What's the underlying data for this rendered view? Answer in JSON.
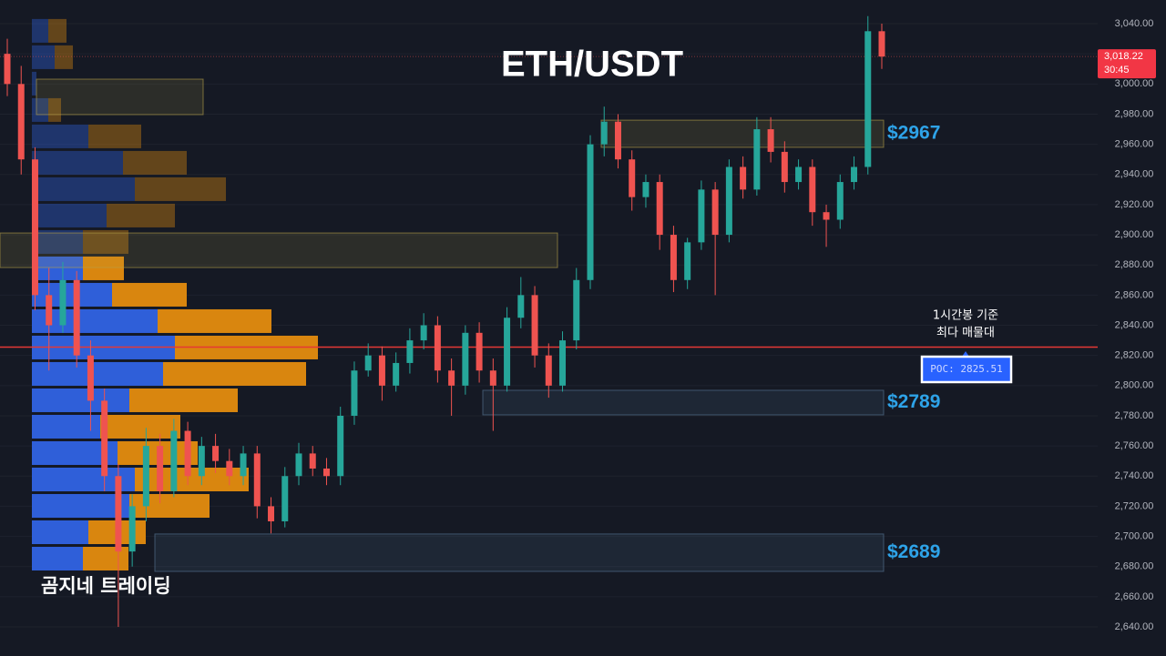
{
  "chart_data": {
    "type": "candlestick",
    "title": "ETH/USDT",
    "watermark": "곰지네 트레이딩",
    "ylim": [
      2620.7,
      3055.7
    ],
    "yticks": [
      {
        "value": 2640,
        "label": "2,640.00"
      },
      {
        "value": 2660,
        "label": "2,660.00"
      },
      {
        "value": 2680,
        "label": "2,680.00"
      },
      {
        "value": 2700,
        "label": "2,700.00"
      },
      {
        "value": 2720,
        "label": "2,720.00"
      },
      {
        "value": 2740,
        "label": "2,740.00"
      },
      {
        "value": 2760,
        "label": "2,760.00"
      },
      {
        "value": 2780,
        "label": "2,780.00"
      },
      {
        "value": 2800,
        "label": "2,800.00"
      },
      {
        "value": 2820,
        "label": "2,820.00"
      },
      {
        "value": 2840,
        "label": "2,840.00"
      },
      {
        "value": 2860,
        "label": "2,860.00"
      },
      {
        "value": 2880,
        "label": "2,880.00"
      },
      {
        "value": 2900,
        "label": "2,900.00"
      },
      {
        "value": 2920,
        "label": "2,920.00"
      },
      {
        "value": 2940,
        "label": "2,940.00"
      },
      {
        "value": 2960,
        "label": "2,960.00"
      },
      {
        "value": 2980,
        "label": "2,980.00"
      },
      {
        "value": 3000,
        "label": "3,000.00"
      },
      {
        "value": 3020,
        "label": "3,020.00"
      },
      {
        "value": 3040,
        "label": "3,040.00"
      }
    ],
    "grid": true,
    "up_color": "#26a69a",
    "down_color": "#ef5350",
    "open": [
      3020,
      3000,
      2950,
      2860,
      2840,
      2870,
      2820,
      2790,
      2740,
      2690,
      2720,
      2760,
      2730,
      2770,
      2740,
      2760,
      2750,
      2740,
      2755,
      2720,
      2710,
      2740,
      2755,
      2745,
      2740,
      2780,
      2810,
      2820,
      2800,
      2815,
      2830,
      2840,
      2810,
      2800,
      2835,
      2810,
      2800,
      2845,
      2860,
      2820,
      2800,
      2830,
      2870,
      2960,
      2975,
      2950,
      2925,
      2935,
      2900,
      2870,
      2895,
      2930,
      2900,
      2945,
      2930,
      2970,
      2955,
      2935,
      2945,
      2915,
      2910,
      2935,
      2945,
      3035
    ],
    "high": [
      3030,
      3012,
      2958,
      2878,
      2882,
      2876,
      2830,
      2798,
      2748,
      2728,
      2772,
      2768,
      2778,
      2776,
      2766,
      2768,
      2758,
      2760,
      2760,
      2726,
      2746,
      2762,
      2760,
      2752,
      2786,
      2816,
      2828,
      2826,
      2822,
      2838,
      2848,
      2846,
      2818,
      2840,
      2842,
      2818,
      2852,
      2872,
      2866,
      2828,
      2836,
      2878,
      2966,
      2985,
      2980,
      2956,
      2940,
      2940,
      2906,
      2898,
      2936,
      2935,
      2950,
      2952,
      2978,
      2978,
      2962,
      2950,
      2950,
      2920,
      2940,
      2952,
      3045,
      3040
    ],
    "low": [
      2992,
      2940,
      2850,
      2810,
      2835,
      2812,
      2770,
      2730,
      2640,
      2680,
      2710,
      2722,
      2726,
      2734,
      2734,
      2742,
      2734,
      2734,
      2712,
      2702,
      2706,
      2734,
      2740,
      2734,
      2734,
      2774,
      2806,
      2790,
      2796,
      2808,
      2824,
      2802,
      2780,
      2794,
      2802,
      2770,
      2796,
      2838,
      2812,
      2792,
      2796,
      2824,
      2864,
      2952,
      2944,
      2916,
      2918,
      2890,
      2862,
      2864,
      2890,
      2860,
      2895,
      2924,
      2926,
      2948,
      2928,
      2930,
      2906,
      2892,
      2904,
      2930,
      2940,
      3010
    ],
    "close": [
      3000,
      2950,
      2860,
      2840,
      2870,
      2820,
      2790,
      2740,
      2690,
      2720,
      2760,
      2730,
      2770,
      2740,
      2760,
      2750,
      2740,
      2755,
      2720,
      2710,
      2740,
      2755,
      2745,
      2740,
      2780,
      2810,
      2820,
      2800,
      2815,
      2830,
      2840,
      2810,
      2800,
      2835,
      2810,
      2800,
      2845,
      2860,
      2820,
      2800,
      2830,
      2870,
      2960,
      2975,
      2950,
      2925,
      2935,
      2900,
      2870,
      2895,
      2930,
      2900,
      2945,
      2930,
      2970,
      2955,
      2935,
      2945,
      2915,
      2910,
      2935,
      2945,
      3035,
      3018.22
    ],
    "volume_profile": {
      "bins": [
        3044,
        3026.5,
        3009,
        2991.5,
        2974,
        2956.5,
        2939,
        2921.5,
        2904,
        2886.5,
        2869,
        2851.5,
        2834,
        2816.5,
        2799,
        2781.5,
        2764,
        2746.5,
        2729,
        2711.5,
        2694,
        2676.5
      ],
      "buy": [
        18,
        25,
        5,
        18,
        62,
        100,
        113,
        82,
        56,
        56,
        88,
        138,
        157,
        144,
        107,
        75,
        94,
        113,
        107,
        62,
        56
      ],
      "sell": [
        20,
        20,
        0,
        14,
        58,
        70,
        100,
        75,
        50,
        45,
        82,
        125,
        157,
        157,
        119,
        88,
        88,
        125,
        88,
        63,
        50
      ],
      "buy_color": "#2f5fd9",
      "sell_color": "#d9860f"
    },
    "zones": [
      {
        "lo": 2979.7,
        "hi": 3003.2,
        "color": "#b8a24a"
      },
      {
        "lo": 2878.3,
        "hi": 2901.2,
        "color": "#b8a24a"
      },
      {
        "lo": 2958,
        "hi": 2976,
        "color": "#b8a24a",
        "label": "$2967"
      },
      {
        "lo": 2780.6,
        "hi": 2796.9,
        "color": "#5a7a99",
        "label": "$2789"
      },
      {
        "lo": 2676.8,
        "hi": 2701.6,
        "color": "#5a7a99",
        "label": "$2689"
      }
    ],
    "poc": {
      "value": 2825.51,
      "label": "POC: 2825.51"
    },
    "annotation": [
      "1시간봉 기준",
      "최다 매물대"
    ],
    "last_price": {
      "value": 3018.22,
      "label": "3,018.22"
    },
    "countdown": "30:45"
  }
}
